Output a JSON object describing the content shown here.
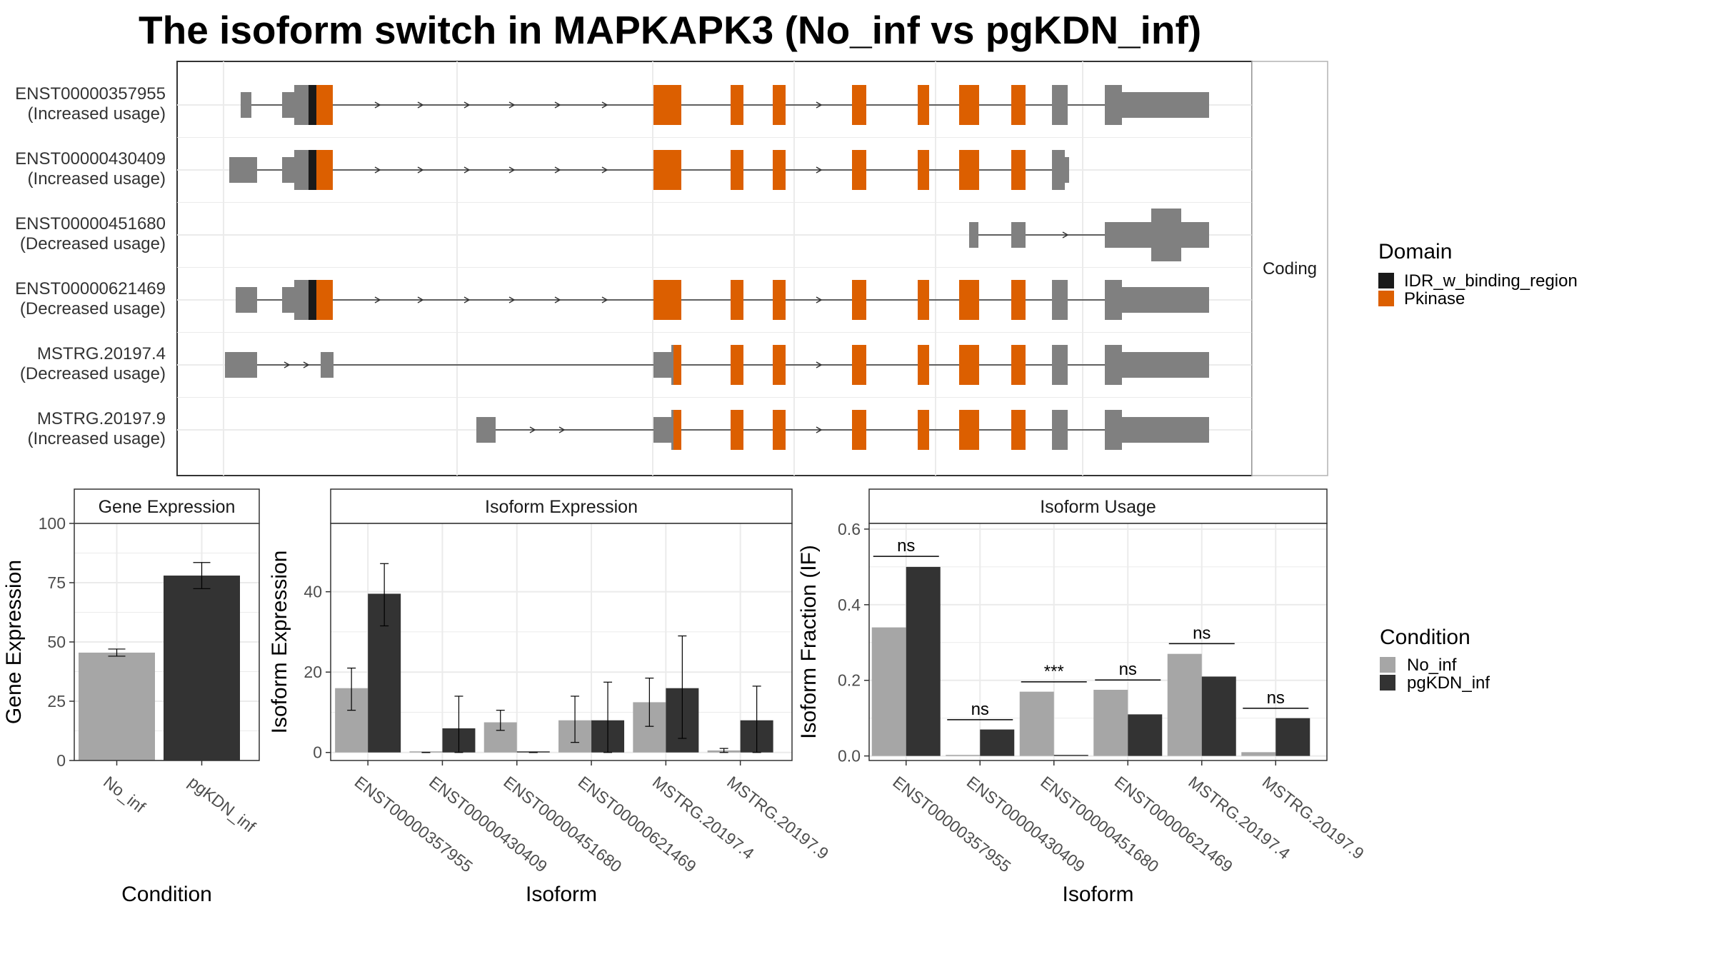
{
  "title": "The isoform switch in MAPKAPK3 (No_inf vs pgKDN_inf)",
  "colors": {
    "exon": "#808080",
    "pkinase": "#DC5F00",
    "idr": "#1a1a1a",
    "no_inf": "#A6A6A6",
    "pgkdn_inf": "#333333",
    "grid": "#ebebeb",
    "panel_border": "#333333"
  },
  "structure": {
    "strip_label": "Coding",
    "transcripts": [
      {
        "id": "ENST00000357955",
        "usage": "(Increased usage)"
      },
      {
        "id": "ENST00000430409",
        "usage": "(Increased usage)"
      },
      {
        "id": "ENST00000451680",
        "usage": "(Decreased usage)"
      },
      {
        "id": "ENST00000621469",
        "usage": "(Decreased usage)"
      },
      {
        "id": "MSTRG.20197.4",
        "usage": "(Decreased usage)"
      },
      {
        "id": "MSTRG.20197.9",
        "usage": "(Increased usage)"
      }
    ],
    "legend": {
      "title": "Domain",
      "items": [
        {
          "label": "IDR_w_binding_region",
          "color": "#1a1a1a"
        },
        {
          "label": "Pkinase",
          "color": "#DC5F00"
        }
      ]
    }
  },
  "condition_legend": {
    "title": "Condition",
    "items": [
      {
        "label": "No_inf",
        "color": "#A6A6A6"
      },
      {
        "label": "pgKDN_inf",
        "color": "#333333"
      }
    ]
  },
  "chart_data": [
    {
      "type": "bar",
      "title": "Gene Expression",
      "xlabel": "Condition",
      "ylabel": "Gene Expression",
      "categories": [
        "No_inf",
        "pgKDN_inf"
      ],
      "values": [
        45.5,
        78
      ],
      "error_low": [
        44,
        72.5
      ],
      "error_high": [
        47,
        83.5
      ],
      "ylim": [
        0,
        100
      ],
      "yticks": [
        0,
        25,
        50,
        75,
        100
      ],
      "grid": true
    },
    {
      "type": "bar",
      "title": "Isoform Expression",
      "xlabel": "Isoform",
      "ylabel": "Isoform Expression",
      "categories": [
        "ENST00000357955",
        "ENST00000430409",
        "ENST00000451680",
        "ENST00000621469",
        "MSTRG.20197.4",
        "MSTRG.20197.9"
      ],
      "series": [
        {
          "name": "No_inf",
          "values": [
            16,
            0,
            7.5,
            8,
            12.5,
            0.5
          ],
          "error_low": [
            10.5,
            0,
            5.5,
            2.5,
            6.5,
            0
          ],
          "error_high": [
            21,
            0,
            10.5,
            14,
            18.5,
            1
          ]
        },
        {
          "name": "pgKDN_inf",
          "values": [
            39.5,
            6,
            0,
            8,
            16,
            8
          ],
          "error_low": [
            31.5,
            0,
            0,
            0,
            3.5,
            0
          ],
          "error_high": [
            47,
            14,
            0,
            17.5,
            29,
            16.5
          ]
        }
      ],
      "ylim": [
        -2,
        57
      ],
      "yticks": [
        0,
        20,
        40
      ],
      "grid": true
    },
    {
      "type": "bar",
      "title": "Isoform Usage",
      "xlabel": "Isoform",
      "ylabel": "Isoform Fraction (IF)",
      "categories": [
        "ENST00000357955",
        "ENST00000430409",
        "ENST00000451680",
        "ENST00000621469",
        "MSTRG.20197.4",
        "MSTRG.20197.9"
      ],
      "series": [
        {
          "name": "No_inf",
          "values": [
            0.34,
            0,
            0.17,
            0.175,
            0.27,
            0.01
          ]
        },
        {
          "name": "pgKDN_inf",
          "values": [
            0.5,
            0.07,
            0,
            0.11,
            0.21,
            0.1
          ]
        }
      ],
      "significance": [
        "ns",
        "ns",
        "***",
        "ns",
        "ns",
        "ns"
      ],
      "sig_y": [
        0.528,
        0.096,
        0.196,
        0.201,
        0.297,
        0.126
      ],
      "ylim": [
        -0.012,
        0.615
      ],
      "yticks": [
        0.0,
        0.2,
        0.4,
        0.6
      ],
      "ytick_labels": [
        "0.0",
        "0.2",
        "0.4",
        "0.6"
      ],
      "grid": true
    }
  ]
}
